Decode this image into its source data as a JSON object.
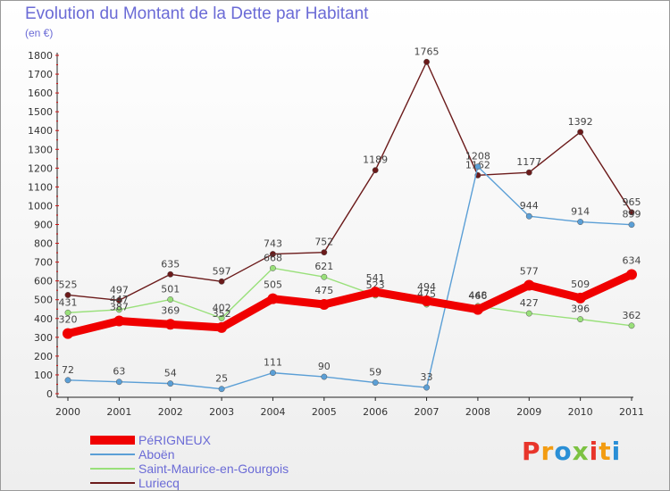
{
  "header": {
    "title": "Evolution du Montant de la Dette par Habitant",
    "unit": "(en €)"
  },
  "logo": {
    "text": "Proxiti",
    "colors": [
      "#e8352b",
      "#f39c12",
      "#2a8fd6",
      "#7cc242"
    ]
  },
  "chart_data": {
    "type": "line",
    "title": "Evolution du Montant de la Dette par Habitant",
    "ylabel": "(en €)",
    "xlabel": "",
    "x": [
      2000,
      2001,
      2002,
      2003,
      2004,
      2005,
      2006,
      2007,
      2008,
      2009,
      2010,
      2011
    ],
    "ylim": [
      0,
      1800
    ],
    "yticks": [
      0,
      100,
      200,
      300,
      400,
      500,
      600,
      700,
      800,
      900,
      1000,
      1100,
      1200,
      1300,
      1400,
      1500,
      1600,
      1700,
      1800
    ],
    "grid": false,
    "legend_position": "bottom-left",
    "series": [
      {
        "name": "Lurie̛cq",
        "color": "#6b1a1a",
        "values": [
          525,
          497,
          635,
          597,
          743,
          752,
          1189,
          1765,
          1162,
          1177,
          1392,
          965
        ]
      },
      {
        "name": "Saint-Maurice-en-Gourgois",
        "color": "#99e07a",
        "values": [
          431,
          447,
          501,
          402,
          668,
          621,
          523,
          475,
          466,
          427,
          396,
          362
        ]
      },
      {
        "name": "Aboën",
        "color": "#5b9fd6",
        "values": [
          72,
          63,
          54,
          25,
          111,
          90,
          59,
          33,
          1208,
          944,
          914,
          899
        ]
      },
      {
        "name": "PéRIGNEUX",
        "color": "#f00000",
        "values": [
          320,
          387,
          369,
          352,
          505,
          475,
          541,
          494,
          448,
          577,
          509,
          634
        ]
      }
    ]
  },
  "legend_items": [
    {
      "name": "PéRIGNEUX",
      "color": "#f00000",
      "thickness": 10
    },
    {
      "name": "Aboën",
      "color": "#5b9fd6",
      "thickness": 2
    },
    {
      "name": "Saint-Maurice-en-Gourgois",
      "color": "#99e07a",
      "thickness": 2
    },
    {
      "name": "Luriecq",
      "color": "#6b1a1a",
      "thickness": 2
    }
  ]
}
